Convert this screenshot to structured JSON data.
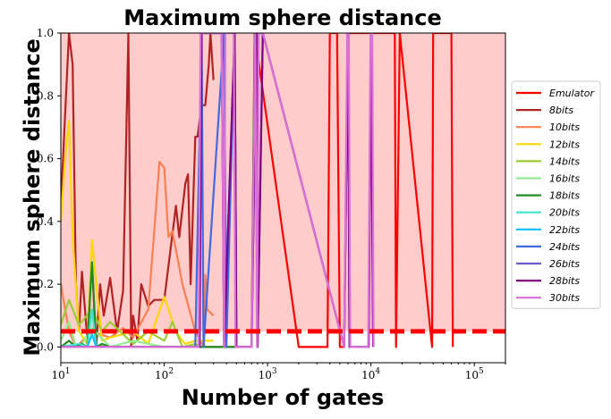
{
  "chart_data": {
    "type": "line",
    "title": "Maximum sphere distance",
    "xlabel": "Number of gates",
    "ylabel": "Maximum sphere distance",
    "xscale": "log",
    "xlim": [
      10,
      200000
    ],
    "ylim": [
      -0.05,
      1.0
    ],
    "x_ticks": [
      {
        "v": 10,
        "b": "10",
        "e": "1"
      },
      {
        "v": 100,
        "b": "10",
        "e": "2"
      },
      {
        "v": 1000,
        "b": "10",
        "e": "3"
      },
      {
        "v": 10000,
        "b": "10",
        "e": "4"
      },
      {
        "v": 100000,
        "b": "10",
        "e": "5"
      }
    ],
    "y_ticks": [
      {
        "v": 0,
        "t": "0.0"
      },
      {
        "v": 0.2,
        "t": "0.2"
      },
      {
        "v": 0.4,
        "t": "0.4"
      },
      {
        "v": 0.6,
        "t": "0.6"
      },
      {
        "v": 0.8,
        "t": "0.8"
      },
      {
        "v": 1.0,
        "t": "1.0"
      }
    ],
    "threshold": {
      "value": 0.05,
      "color": "#ff0000"
    },
    "shaded_region": {
      "from": 0.05,
      "to": 1.0,
      "color": "#ffcccc"
    },
    "legend_position": "right",
    "series": [
      {
        "name": "Emulator",
        "color": "#ff0000",
        "x": [
          10,
          700,
          750,
          2000,
          3800,
          4000,
          4700,
          5000,
          5500,
          6000,
          9000,
          17000,
          17500,
          19000,
          39000,
          40000,
          60000,
          62000
        ],
        "y": [
          0,
          0,
          1,
          0,
          0,
          1,
          1,
          0,
          0,
          1,
          1,
          1,
          0,
          1,
          0,
          1,
          1,
          0
        ]
      },
      {
        "name": "8bits",
        "color": "#b22222",
        "x": [
          10,
          12,
          13,
          14,
          15,
          16,
          18,
          20,
          22,
          24,
          26,
          30,
          35,
          40,
          45,
          48,
          50,
          55,
          60,
          70,
          80,
          100,
          130,
          140,
          160,
          170,
          180,
          200,
          210,
          230,
          250,
          270,
          280,
          300
        ],
        "y": [
          0.45,
          1.0,
          0.9,
          0.2,
          0.05,
          0.24,
          0.03,
          0.27,
          0.0,
          0.2,
          0.1,
          0.22,
          0.05,
          0.18,
          1.0,
          0.0,
          0.1,
          0.02,
          0.2,
          0.13,
          0.15,
          0.15,
          0.45,
          0.35,
          0.52,
          0.55,
          0.2,
          0.67,
          0.67,
          0.77,
          0.77,
          0.9,
          1.0,
          0.85
        ]
      },
      {
        "name": "10bits",
        "color": "#ff7f50",
        "x": [
          10,
          12,
          14,
          20,
          30,
          40,
          50,
          70,
          90,
          100,
          110,
          120,
          150,
          200,
          240,
          250,
          260,
          300
        ],
        "y": [
          0.2,
          0.05,
          0.0,
          0.05,
          0.03,
          0.06,
          0.03,
          0.12,
          0.59,
          0.57,
          0.35,
          0.37,
          0.2,
          0.05,
          0.0,
          0.23,
          0.12,
          0.1
        ]
      },
      {
        "name": "12bits",
        "color": "#ffd700",
        "x": [
          10,
          11,
          12,
          13,
          15,
          18,
          20,
          25,
          30,
          50,
          70,
          100,
          130,
          150,
          160,
          200,
          250,
          300
        ],
        "y": [
          0.4,
          0.6,
          0.72,
          0.35,
          0.05,
          0.01,
          0.34,
          0.02,
          0.03,
          0.05,
          0.01,
          0.16,
          0.05,
          0.02,
          0.01,
          0.02,
          0.02,
          0.02
        ]
      },
      {
        "name": "14bits",
        "color": "#9acd32",
        "x": [
          10,
          12,
          15,
          20,
          25,
          30,
          50,
          70,
          100,
          120,
          150,
          200,
          230,
          250
        ],
        "y": [
          0.07,
          0.15,
          0.07,
          0.12,
          0.05,
          0.08,
          0.01,
          0.05,
          0.02,
          0.08,
          0.0,
          0.01,
          0.0,
          0.01
        ]
      },
      {
        "name": "16bits",
        "color": "#90ee90",
        "x": [
          10,
          12,
          14,
          16,
          20,
          30,
          50,
          100
        ],
        "y": [
          0.02,
          0.08,
          0.0,
          0.01,
          0.06,
          0.0,
          0.02,
          0.0
        ]
      },
      {
        "name": "18bits",
        "color": "#228b22",
        "x": [
          10,
          12,
          14,
          16,
          18,
          20,
          22,
          25,
          30,
          50,
          100,
          200,
          250,
          500,
          700,
          750,
          800,
          820
        ],
        "y": [
          0.0,
          0.02,
          0.0,
          0.01,
          0.0,
          0.27,
          0.0,
          0.01,
          0.0,
          0.0,
          0.0,
          0.0,
          0.0,
          0.0,
          0.0,
          1.0,
          1.0,
          0.95
        ]
      },
      {
        "name": "20bits",
        "color": "#40e0d0",
        "x": [
          10,
          15,
          18,
          20,
          22,
          30,
          50
        ],
        "y": [
          0.0,
          0.01,
          0.0,
          0.12,
          0.0,
          0.0,
          0.0
        ]
      },
      {
        "name": "22bits",
        "color": "#00bfff",
        "x": [
          10,
          18,
          20,
          22,
          30
        ],
        "y": [
          0.0,
          0.0,
          0.04,
          0.0,
          0.0
        ]
      },
      {
        "name": "24bits",
        "color": "#4169e1",
        "x": [
          10,
          100,
          200,
          230,
          240,
          380,
          400,
          480,
          500
        ],
        "y": [
          0.0,
          0.0,
          0.0,
          1.0,
          0.0,
          1.0,
          0.0,
          1.0,
          0.0
        ]
      },
      {
        "name": "26bits",
        "color": "#6a5acd",
        "x": [
          10,
          220,
          230,
          360,
          380,
          480,
          500,
          700,
          780,
          800,
          900,
          5500,
          6000,
          6200,
          9500,
          10000,
          10500
        ],
        "y": [
          0.0,
          0.0,
          1.0,
          1.0,
          0.0,
          1.0,
          0.0,
          0.0,
          1.0,
          0.0,
          1.0,
          0.0,
          1.0,
          0.0,
          0.0,
          1.0,
          0.0
        ]
      },
      {
        "name": "28bits",
        "color": "#800080",
        "x": [
          10,
          220,
          230,
          360,
          380,
          480,
          500,
          700,
          780,
          800,
          900,
          5500,
          6000,
          6200,
          9500,
          10000,
          10500
        ],
        "y": [
          0.0,
          0.0,
          1.0,
          1.0,
          0.0,
          1.0,
          0.0,
          0.0,
          1.0,
          0.0,
          1.0,
          0.0,
          1.0,
          0.0,
          0.0,
          1.0,
          0.0
        ]
      },
      {
        "name": "30bits",
        "color": "#da70d6",
        "x": [
          10,
          215,
          225,
          240,
          360,
          380,
          390,
          470,
          490,
          520,
          700,
          760,
          790,
          820,
          900,
          5500,
          5900,
          6100,
          6300,
          9400,
          9900,
          10300,
          10600
        ],
        "y": [
          0.0,
          0.0,
          1.0,
          1.0,
          1.0,
          0.0,
          1.0,
          1.0,
          0.0,
          0.0,
          0.0,
          1.0,
          0.0,
          1.0,
          1.0,
          0.0,
          1.0,
          1.0,
          0.0,
          0.0,
          1.0,
          1.0,
          0.0
        ]
      }
    ]
  }
}
